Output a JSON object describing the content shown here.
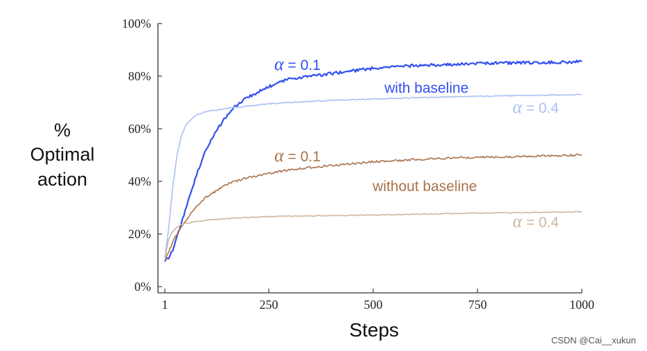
{
  "chart_data": {
    "type": "line",
    "ylabel_lines": [
      "%",
      "Optimal",
      "action"
    ],
    "xlabel": "Steps",
    "xlim": [
      1,
      1000
    ],
    "ylim": [
      0,
      100
    ],
    "x_ticks": [
      1,
      250,
      500,
      750,
      1000
    ],
    "y_ticks": [
      0,
      20,
      40,
      60,
      80,
      100
    ],
    "y_tick_suffix": "%",
    "x": [
      1,
      10,
      20,
      30,
      40,
      50,
      60,
      70,
      80,
      90,
      100,
      120,
      140,
      160,
      180,
      200,
      250,
      300,
      400,
      500,
      600,
      700,
      800,
      900,
      1000
    ],
    "series": [
      {
        "key": "wb01",
        "color": "#2f4ff0",
        "values": [
          10,
          11,
          14,
          19,
          24,
          29,
          34,
          39,
          44,
          48,
          52,
          58,
          63,
          67,
          70,
          72,
          76,
          79,
          81,
          83,
          84,
          84.5,
          85,
          85.2,
          85.5
        ]
      },
      {
        "key": "wb04",
        "color": "#a9bff5",
        "values": [
          11,
          22,
          38,
          50,
          57,
          61,
          63,
          64.5,
          65.5,
          66,
          66.5,
          67,
          67.5,
          68,
          68.3,
          68.6,
          69.5,
          70,
          70.8,
          71.3,
          71.8,
          72.2,
          72.5,
          72.8,
          73
        ]
      },
      {
        "key": "nb01",
        "color": "#a9724a",
        "values": [
          10,
          13,
          17,
          20,
          22.5,
          25,
          27,
          29,
          31,
          32.5,
          34,
          36,
          38,
          39.5,
          40.5,
          41.5,
          43,
          44.5,
          46,
          47.5,
          48.3,
          49,
          49.3,
          49.7,
          50
        ]
      },
      {
        "key": "nb04",
        "color": "#cdb59f",
        "values": [
          11,
          18,
          21,
          22.5,
          23.5,
          24,
          24.3,
          24.6,
          24.8,
          25,
          25.2,
          25.5,
          25.7,
          26,
          26.2,
          26.3,
          26.6,
          26.8,
          27,
          27.2,
          27.5,
          27.8,
          28,
          28.2,
          28.5
        ]
      }
    ],
    "annotations": [
      {
        "key": "a1",
        "alpha": "α",
        "text": " = 0.1",
        "color": "#2f4ff0"
      },
      {
        "key": "a2",
        "text": "with baseline",
        "color": "#2f4ff0"
      },
      {
        "key": "a3",
        "alpha": "α",
        "text": " = 0.4",
        "color": "#a9bff5"
      },
      {
        "key": "a4",
        "alpha": "α",
        "text": " = 0.1",
        "color": "#a9724a"
      },
      {
        "key": "a5",
        "text": "without baseline",
        "color": "#a9724a"
      },
      {
        "key": "a6",
        "alpha": "α",
        "text": " = 0.4",
        "color": "#cdb59f"
      }
    ]
  },
  "watermark": "CSDN @Cai__xukun"
}
